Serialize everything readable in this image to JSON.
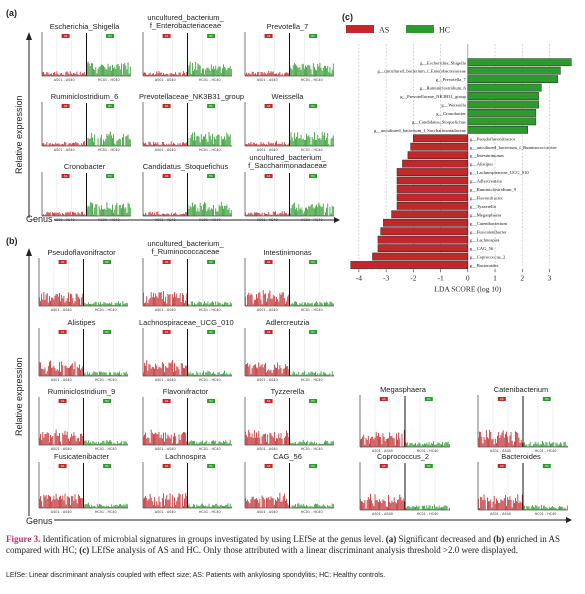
{
  "panels": {
    "a": "(a)",
    "b": "(b)",
    "c": "(c)"
  },
  "axis_text": {
    "ylabel": "Relative  expression",
    "xlabel_a": "Genus",
    "xlabel_b": "Genus"
  },
  "mini_chart_labels": {
    "as_range": "AS01 - AS40",
    "hc_range": "HC01 - HC40",
    "as_tag": "AS",
    "hc_tag": "HC"
  },
  "panel_a_genera": [
    "Escherichia_Shigella",
    "uncultured_bacterium_\nf_Enterobacteriaceae",
    "Prevotella_7",
    "Ruminiclostridium_6",
    "Prevotellaceae_NK3B31_group",
    "Weissella",
    "Cronobacter",
    "Candidatus_Stoquefichus",
    "uncultured_bacterium_\nf_Saccharimonadaceae"
  ],
  "panel_b_genera": [
    "Pseudoflavonifractor",
    "uncultured_bacterium_\nf_Ruminococcaceae",
    "Intestinimonas",
    "Alistipes",
    "Lachnospiraceae_UCG_010",
    "Adlercreutzia",
    "Ruminiclostridium_9",
    "Flavonifractor",
    "Tyzzerella",
    "Megasphaera",
    "Catenibacterium",
    "Fusicatenibacter",
    "Lachnospira",
    "CAG_56",
    "Coprococcus_2",
    "Bacteroides"
  ],
  "colors": {
    "as": "#c0282c",
    "hc": "#2e9a2e",
    "caption_accent": "#c0306a"
  },
  "caption": {
    "fig_label": "Figure 3.",
    "text_1": " Identification of microbial signatures in groups investigated by using LEfSe at the genus level. ",
    "a_tag": "(a)",
    "text_2": " Significant decreased and ",
    "b_tag": "(b)",
    "text_3": " enriched in AS compared with HC; ",
    "c_tag": "(c)",
    "text_4": " LEfSe analysis of AS and HC. Only those attributed with a linear discriminant analysis threshold >2.0 were displayed.",
    "footnote": "LEfSe: Linear discriminant analysis coupled with effect size; AS: Patients with ankylosing spondylitis; HC: Healthy controls."
  },
  "chart_data": {
    "type": "bar",
    "orientation": "horizontal",
    "xlabel": "LDA SCORE (log 10)",
    "xlim": [
      -4.4,
      3.9
    ],
    "xticks": [
      -4,
      -3,
      -2,
      -1,
      0,
      1,
      2,
      3
    ],
    "grid": true,
    "legend": {
      "placement": "top-left",
      "entries": [
        {
          "name": "AS",
          "color": "#c0282c"
        },
        {
          "name": "HC",
          "color": "#2e9a2e"
        }
      ]
    },
    "categories": [
      "g__Escherichia_Shigella",
      "g__uncultured_bacterium_f_Enterobacteriaceae",
      "g__Prevotella_7",
      "g__Ruminiclostridium_6",
      "g__Prevotellaceae_NK3B31_group",
      "g__Weissella",
      "g__Cronobacter",
      "g__Candidatus_Stoquefichus",
      "g__uncultured_bacterium_f_Saccharimonadaceae",
      "g__Pseudoflavonifractor",
      "g__uncultured_bacterium_f_Ruminococcaceae",
      "g__Intestinimonas",
      "g__Alistipes",
      "g__Lachnospiraceae_UCG_010",
      "g__Adlercreutzia",
      "g__Ruminiclostridium_9",
      "g__Flavonifractor",
      "g__Tyzzerella",
      "g__Megasphaera",
      "g__Catenibacterium",
      "g__Fusicatenibacter",
      "g__Lachnospira",
      "g__CAG_56",
      "g__Coprococcus_2",
      "g__Bacteroides"
    ],
    "series": [
      {
        "name": "HC",
        "values": [
          3.8,
          3.4,
          3.3,
          2.7,
          2.6,
          2.6,
          2.5,
          2.5,
          2.2,
          0,
          0,
          0,
          0,
          0,
          0,
          0,
          0,
          0,
          0,
          0,
          0,
          0,
          0,
          0,
          0
        ]
      },
      {
        "name": "AS",
        "values": [
          0,
          0,
          0,
          0,
          0,
          0,
          0,
          0,
          0,
          -2.0,
          -2.1,
          -2.2,
          -2.4,
          -2.6,
          -2.6,
          -2.6,
          -2.6,
          -2.6,
          -2.8,
          -3.1,
          -3.2,
          -3.3,
          -3.3,
          -3.5,
          -4.3
        ]
      }
    ]
  }
}
